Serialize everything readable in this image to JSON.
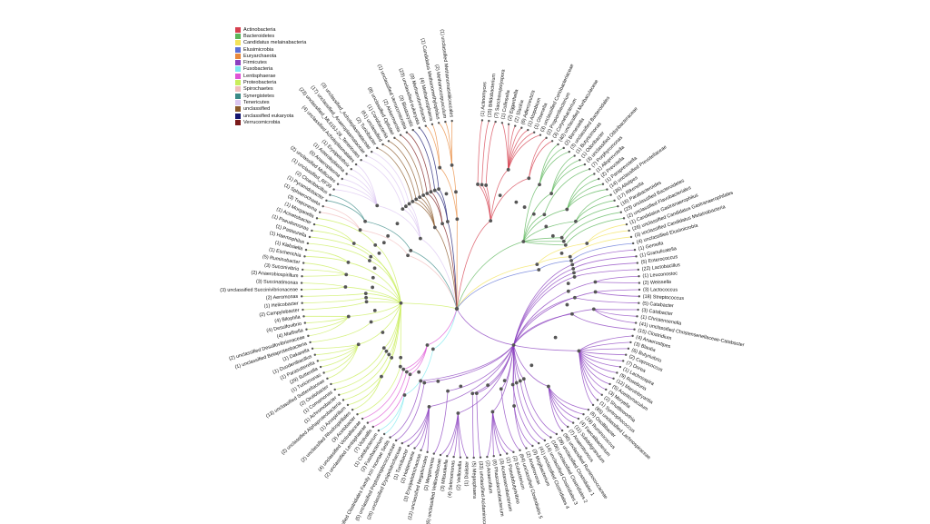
{
  "legend": [
    {
      "label": "Actinobacteria",
      "color": "#d6404f"
    },
    {
      "label": "Bacteroidetes",
      "color": "#5bb65a"
    },
    {
      "label": "Candidatus melainabacteria",
      "color": "#f3e35a"
    },
    {
      "label": "Elusimicrobia",
      "color": "#5b6fd6"
    },
    {
      "label": "Euryarchaeota",
      "color": "#e8893c"
    },
    {
      "label": "Firmicutes",
      "color": "#8a3fbf"
    },
    {
      "label": "Fusobacteria",
      "color": "#7ee9ef"
    },
    {
      "label": "Lentisphaerae",
      "color": "#df55d6"
    },
    {
      "label": "Proteobacteria",
      "color": "#c9ee5b"
    },
    {
      "label": "Spirochaetes",
      "color": "#f1bdbd"
    },
    {
      "label": "Synergistetes",
      "color": "#3a8a86"
    },
    {
      "label": "Tenericutes",
      "color": "#dcc7f1"
    },
    {
      "label": "unclassified",
      "color": "#8b5a2b"
    },
    {
      "label": "unclassified eukaryota",
      "color": "#14146e"
    },
    {
      "label": "Verrucomicrobia",
      "color": "#7a1a1a"
    }
  ],
  "tree": [
    {
      "phylum": "Actinobacteria",
      "color": "#d6404f",
      "clusters": [
        [
          "(1) Actinomyces"
        ],
        [
          "(15) Bifidobacterium"
        ],
        [
          "(7) Saccharopolyspora"
        ],
        [
          "(1) Collinsella",
          "(2) Eggerthella",
          "(2) Slackia",
          "(6) Adlercreutzia",
          "(1) Atopobium",
          "(1) Olsenella",
          "(3) unclassified Coriobacteriaceae"
        ],
        [
          "(2) Propionibacterium",
          "(3) Corynebacterium"
        ]
      ]
    },
    {
      "phylum": "Bacteroidetes",
      "color": "#5bb65a",
      "clusters": [
        [
          "(40) unclassified Muribaculaceae",
          "(2) Barnesiella",
          "(3) unclassified Bacteroidales"
        ],
        [
          "(1) Butyricimonas",
          "(1) Odoribacter",
          "(3) unclassified Odoribacteraceae"
        ],
        [
          "(7) Porphyromonas"
        ],
        [
          "(1) Alloprevotella",
          "(2) Prevotella",
          "(1) Paraprevotella",
          "(14) unclassified Prevotellaceae"
        ],
        [
          "(36) Alistipes",
          "(17) Rikenella"
        ],
        [
          "(16) Parabacteroides"
        ],
        [
          "(23) unclassified Bacteroidetes"
        ],
        [
          "(2) unclassified Flavobacteriales"
        ]
      ]
    },
    {
      "phylum": "Candidatus melainabacteria",
      "color": "#f3e35a",
      "clusters": [
        [
          "(1) Candidatus Gastranaerophilus",
          "(26) unclassified Candidatus Gastranaerophilales"
        ],
        [
          "(3) unclassified Candidatus Melainabacteria"
        ]
      ]
    },
    {
      "phylum": "Elusimicrobia",
      "color": "#5b6fd6",
      "clusters": [
        [
          "(4) unclassified Elusimicrobia"
        ]
      ]
    },
    {
      "phylum": "Firmicutes",
      "color": "#8a3fbf",
      "clusters": [
        [
          "(1) Gemella"
        ],
        [
          "(1) Granulicatella"
        ],
        [
          "(5) Enterococcus"
        ],
        [
          "(22) Lactobacillus"
        ],
        [
          "(1) Leuconostoc",
          "(2) Weissella"
        ],
        [
          "(3) Lactococcus",
          "(18) Streptococcus"
        ],
        [
          "(5) Catabacter"
        ],
        [
          "(3) Catabacter",
          "(1) Christensenella",
          "(41) unclassified Christensenellaceae-Catabacter"
        ],
        [
          "(15) Clostridium"
        ],
        [
          "(4) Anaerostipes",
          "(3) Blautia",
          "(6) Butyrivibrio",
          "(2) Coprococcus",
          "(7) Dorea",
          "(1) Lachnospira",
          "(9) Roseburia",
          "(12) Marvinbryantia",
          "(5) Acetitomaculum",
          "(3) Moryella",
          "(2) Shuttleworthia",
          "(1) Syntrophococcus",
          "(85) unclassified Lachnospiraceae"
        ],
        [
          "(6) Oscillibacter",
          "(19) Ruminococcus",
          "(4) Faecalibacterium",
          "(11) Subdoligranulum",
          "(7) Anaerotruncus",
          "(90) unclassified Ruminococcaceae"
        ],
        [
          "(39) unclassified Clostridiales 1"
        ],
        [
          "(106) unclassified Clostridiales 2"
        ],
        [
          "(14) unclassified Clostridiales 3"
        ],
        [
          "(41) unclassified Clostridiales 4"
        ],
        [
          "(3) Mogibacterium",
          "(2) Anaerovorax"
        ],
        [
          "(64) unclassified Clostridiales 5"
        ],
        [
          "(2) Eubacterium",
          "(1) Pseudobutyrivibrio",
          "(3) Acetanaerobacterium",
          "(6) Phascolarctobacterium",
          "(2) Anaerofilum"
        ],
        [
          "(33) unclassified Acidaminococcaceae"
        ],
        [
          "(5) Megasphaera"
        ],
        [
          "(1) Dialister",
          "(2) Veillonella",
          "(4) Selenomonas",
          "(3) Mitsuokella",
          "(6) unclassified Veillonellaceae"
        ],
        [
          "(2) Megamonas"
        ],
        [
          "(12) unclassified Negativicutes",
          "(3) Erysipelotrichaceae",
          "(2) Holdemania",
          "(1) Turicibacter",
          "(26) unclassified Erysipelotrichaceae"
        ],
        [
          "(5) unclassified Peptostreptococcaceae"
        ],
        [
          "(2) unclassified Clostridiales Family XIII Incertae Sedis"
        ]
      ]
    },
    {
      "phylum": "Fusobacteria",
      "color": "#7ee9ef",
      "clusters": [
        [
          "(2) Fusobacterium",
          "(1) Cetobacterium"
        ]
      ]
    },
    {
      "phylum": "Lentisphaerae",
      "color": "#df55d6",
      "clusters": [
        [
          "(7) Victivallis"
        ],
        [
          "(2) unclassified Lentisphaerae"
        ],
        [
          "(4) unclassified Victivallaceae"
        ]
      ]
    },
    {
      "phylum": "Proteobacteria",
      "color": "#c9ee5b",
      "clusters": [
        [
          "(3) Acetobacter"
        ],
        [
          "(2) unclassified Rhodospirillales",
          "(1) Azospirillum"
        ],
        [
          "(2) unclassified Alphaproteobacteria"
        ],
        [
          "(1) Achromobacter"
        ],
        [
          "(1) Comamonas"
        ],
        [
          "(2) Oxalobacter"
        ],
        [
          "(13) unclassified Sutterellaceae",
          "(1) Turicimonas",
          "(29) Sutterella",
          "(1) Parasutterella",
          "(1) Duodenibacillus",
          "(1) Dakarella"
        ],
        [
          "(1) unclassified Betaproteobacteria"
        ],
        [
          "(2) unclassified Desulfovibrionaceae",
          "(4) Mailhella",
          "(4) Desulfovibrio",
          "(4) Bilophila"
        ],
        [
          "(2) Campylobacter"
        ],
        [
          "(1) Helicobacter"
        ],
        [
          "(2) Aeromonas"
        ],
        [
          "(3) unclassified Succinivibrionaceae",
          "(3) Succinatimonas"
        ],
        [
          "(2) Anaerobiospirillum",
          "(3) Succinivibrio",
          "(5) Ruminobacter"
        ],
        [
          "(1) Escherichia",
          "(1) Klebsiella"
        ],
        [
          "(1) Haemophilus"
        ],
        [
          "(1) Pasteurella"
        ],
        [
          "(1) Pseudomonas",
          "(1) Acinetobacter"
        ],
        [
          "(1) Morganella"
        ]
      ]
    },
    {
      "phylum": "Spirochaetes",
      "color": "#f1bdbd",
      "clusters": [
        [
          "(3) Treponema",
          "(1) Sphaerochaeta"
        ]
      ]
    },
    {
      "phylum": "Synergistetes",
      "color": "#3a8a86",
      "clusters": [
        [
          "(1) Pyramidobacter",
          "(2) Cloacibacillus"
        ]
      ]
    },
    {
      "phylum": "Tenericutes",
      "color": "#dcc7f1",
      "clusters": [
        [
          "(1) unclassified_RF39",
          "(2) unclassified Mollicutes",
          "(5) Anaeroplasma",
          "(1) Asteroleplasma",
          "(1) Erysipelothrix",
          "(4) unclassified Acholeplasmatales"
        ],
        [
          "(23) unclassified_ML615J-28_Tenericutes"
        ],
        [
          "(17) unclassified_Anaeroplasmataceae"
        ],
        [
          "(3) unclassified_Acholeplasmataceae"
        ]
      ]
    },
    {
      "phylum": "unclassified",
      "color": "#8b5a2b",
      "clusters": [
        [
          "(2) Turicibacter"
        ],
        [
          "(61) unclassified"
        ],
        [
          "(1) Coriobacteriia"
        ],
        [
          "(8) unclassified Opitutae"
        ]
      ]
    },
    {
      "phylum": "Verrucomicrobia",
      "color": "#7a1a1a",
      "clusters": [
        [
          "(2) Akkermansia"
        ],
        [
          "(1) unclassified Verrucomicrobia"
        ]
      ]
    },
    {
      "phylum": "unclassified eukaryota",
      "color": "#14146e",
      "clusters": [
        [
          "(3) Blastocystis"
        ],
        [
          "(23) unclassified eukaryota"
        ]
      ]
    },
    {
      "phylum": "Euryarchaeota",
      "color": "#e8893c",
      "clusters": [
        [
          "(9) Methanobrevibacter",
          "(4) Methanosphaera"
        ],
        [
          "(1) Candidatus Methanomethylophilus",
          "(2) Methanocorpusculum",
          "(1) unclassified Methanomassiliicoccales"
        ]
      ]
    }
  ]
}
